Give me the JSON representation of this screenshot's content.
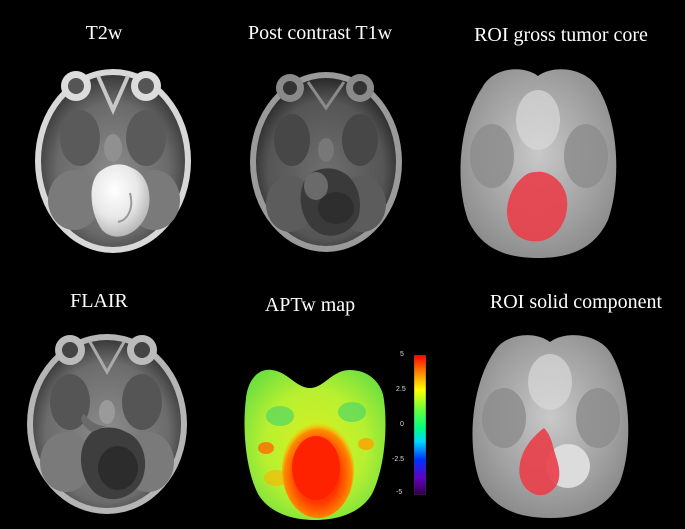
{
  "panels": [
    {
      "id": "t2w",
      "label": "T2w",
      "kind": "bright-lesion"
    },
    {
      "id": "t1w",
      "label": "Post contrast T1w",
      "kind": "dark-cyst"
    },
    {
      "id": "roi_gross",
      "label": "ROI gross tumor core",
      "kind": "roi-full"
    },
    {
      "id": "flair",
      "label": "FLAIR",
      "kind": "flair-cyst"
    },
    {
      "id": "aptw",
      "label": "APTw map",
      "kind": "apt-map"
    },
    {
      "id": "roi_solid",
      "label": "ROI solid component",
      "kind": "roi-partial"
    }
  ],
  "colorbar": {
    "ticks": [
      "5",
      "2.5",
      "0",
      "-2.5",
      "-5"
    ],
    "min": -5,
    "max": 5,
    "colors": [
      "#ff0000",
      "#ff8000",
      "#ffff00",
      "#80ff40",
      "#00ff00",
      "#00ffc0",
      "#00a0ff",
      "#0020ff",
      "#6a00c0",
      "#3a004a"
    ]
  },
  "colors": {
    "background": "#000000",
    "roi": "#e8414b",
    "label": "#ffffff"
  }
}
